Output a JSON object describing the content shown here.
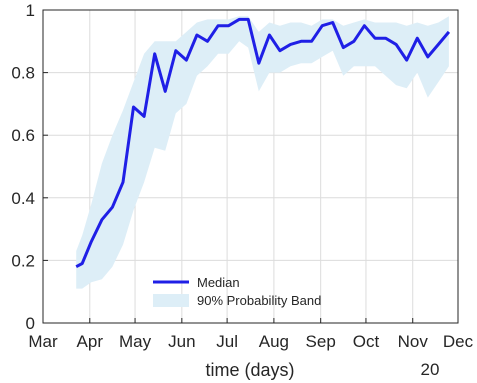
{
  "chart_data": {
    "type": "line",
    "xlabel": "time (days)",
    "year_label": "20",
    "x_ticks": [
      "Mar",
      "Apr",
      "May",
      "Jun",
      "Jul",
      "Aug",
      "Sep",
      "Oct",
      "Nov",
      "Dec"
    ],
    "ylim": [
      0,
      1
    ],
    "y_ticks": [
      "0",
      "0.2",
      "0.4",
      "0.6",
      "0.8",
      "1"
    ],
    "grid": true,
    "legend_position": "bottom-center",
    "colors": {
      "median": "#1f1fe6",
      "band": "#ddeef7",
      "grid": "#dcdcdc",
      "axis": "#262626"
    },
    "series": [
      {
        "name": "Median",
        "x": [
          "2020-03-23",
          "2020-03-27",
          "2020-04-02",
          "2020-04-09",
          "2020-04-16",
          "2020-04-23",
          "2020-04-30",
          "2020-05-07",
          "2020-05-14",
          "2020-05-21",
          "2020-05-28",
          "2020-06-04",
          "2020-06-11",
          "2020-06-18",
          "2020-06-25",
          "2020-07-02",
          "2020-07-09",
          "2020-07-15",
          "2020-07-22",
          "2020-07-29",
          "2020-08-05",
          "2020-08-12",
          "2020-08-19",
          "2020-08-26",
          "2020-09-02",
          "2020-09-09",
          "2020-09-16",
          "2020-09-23",
          "2020-09-30",
          "2020-10-07",
          "2020-10-14",
          "2020-10-21",
          "2020-10-28",
          "2020-11-04",
          "2020-11-11",
          "2020-11-18",
          "2020-11-25"
        ],
        "values": [
          0.18,
          0.19,
          0.26,
          0.33,
          0.37,
          0.45,
          0.69,
          0.66,
          0.86,
          0.74,
          0.87,
          0.84,
          0.92,
          0.9,
          0.95,
          0.95,
          0.97,
          0.97,
          0.83,
          0.92,
          0.87,
          0.89,
          0.9,
          0.9,
          0.95,
          0.96,
          0.88,
          0.9,
          0.95,
          0.91,
          0.91,
          0.89,
          0.84,
          0.91,
          0.85,
          0.89,
          0.93
        ]
      },
      {
        "name": "90% Probability Band",
        "x": [
          "2020-03-23",
          "2020-03-27",
          "2020-04-02",
          "2020-04-09",
          "2020-04-16",
          "2020-04-23",
          "2020-04-30",
          "2020-05-07",
          "2020-05-14",
          "2020-05-21",
          "2020-05-28",
          "2020-06-04",
          "2020-06-11",
          "2020-06-18",
          "2020-06-25",
          "2020-07-02",
          "2020-07-09",
          "2020-07-15",
          "2020-07-22",
          "2020-07-29",
          "2020-08-05",
          "2020-08-12",
          "2020-08-19",
          "2020-08-26",
          "2020-09-02",
          "2020-09-09",
          "2020-09-16",
          "2020-09-23",
          "2020-09-30",
          "2020-10-07",
          "2020-10-14",
          "2020-10-21",
          "2020-10-28",
          "2020-11-04",
          "2020-11-11",
          "2020-11-18",
          "2020-11-25"
        ],
        "lower": [
          0.11,
          0.11,
          0.13,
          0.14,
          0.18,
          0.25,
          0.36,
          0.45,
          0.56,
          0.55,
          0.67,
          0.7,
          0.79,
          0.82,
          0.86,
          0.86,
          0.9,
          0.88,
          0.74,
          0.8,
          0.8,
          0.82,
          0.83,
          0.83,
          0.85,
          0.87,
          0.79,
          0.82,
          0.82,
          0.82,
          0.79,
          0.76,
          0.75,
          0.8,
          0.72,
          0.77,
          0.82
        ],
        "upper": [
          0.23,
          0.28,
          0.38,
          0.51,
          0.6,
          0.68,
          0.77,
          0.86,
          0.9,
          0.9,
          0.9,
          0.93,
          0.96,
          0.97,
          0.97,
          0.97,
          0.98,
          0.98,
          0.93,
          0.96,
          0.95,
          0.96,
          0.96,
          0.95,
          0.97,
          0.97,
          0.95,
          0.96,
          0.97,
          0.96,
          0.96,
          0.96,
          0.95,
          0.96,
          0.95,
          0.96,
          0.98
        ]
      }
    ]
  }
}
